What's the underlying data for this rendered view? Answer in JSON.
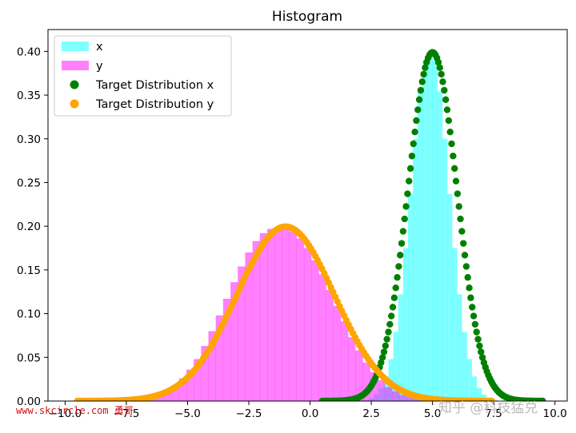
{
  "chart_data": {
    "type": "area",
    "title": "Histogram",
    "xlabel": "",
    "ylabel": "",
    "xlim": [
      -10.7,
      10.5
    ],
    "ylim": [
      0,
      0.425
    ],
    "x_ticks": [
      -10.0,
      -7.5,
      -5.0,
      -2.5,
      0.0,
      2.5,
      5.0,
      7.5,
      10.0
    ],
    "x_tick_labels": [
      "−10.0",
      "−7.5",
      "−5.0",
      "−2.5",
      "0.0",
      "2.5",
      "5.0",
      "7.5",
      "10.0"
    ],
    "y_ticks": [
      0.0,
      0.05,
      0.1,
      0.15,
      0.2,
      0.25,
      0.3,
      0.35,
      0.4
    ],
    "y_tick_labels": [
      "0.00",
      "0.05",
      "0.10",
      "0.15",
      "0.20",
      "0.25",
      "0.30",
      "0.35",
      "0.40"
    ],
    "grid": false,
    "legend_position": "top-left",
    "series": [
      {
        "name": "x",
        "kind": "histogram",
        "color": "#00ffff",
        "opacity": 0.5,
        "bin_width": 0.2,
        "bin_centers": [
          0.5,
          0.7,
          0.9,
          1.1,
          1.3,
          1.5,
          1.7,
          1.9,
          2.1,
          2.3,
          2.5,
          2.7,
          2.9,
          3.1,
          3.3,
          3.5,
          3.7,
          3.9,
          4.1,
          4.3,
          4.5,
          4.7,
          4.9,
          5.1,
          5.3,
          5.5,
          5.7,
          5.9,
          6.1,
          6.3,
          6.5,
          6.7,
          6.9,
          7.1,
          7.3,
          7.5,
          7.7,
          7.9,
          8.1,
          8.3,
          8.5,
          8.7,
          8.9,
          9.1,
          9.3,
          9.5
        ],
        "values": [
          0.0,
          0.0,
          0.0,
          0.0,
          0.0,
          0.0,
          0.0001,
          0.0002,
          0.0005,
          0.0014,
          0.0032,
          0.0074,
          0.015,
          0.028,
          0.048,
          0.079,
          0.122,
          0.175,
          0.237,
          0.3,
          0.354,
          0.39,
          0.4,
          0.39,
          0.354,
          0.3,
          0.237,
          0.175,
          0.122,
          0.079,
          0.048,
          0.028,
          0.015,
          0.0074,
          0.0032,
          0.0014,
          0.0005,
          0.0002,
          0.0001,
          0.0,
          0.0,
          0.0,
          0.0,
          0.0,
          0.0,
          0.0
        ]
      },
      {
        "name": "y",
        "kind": "histogram",
        "color": "#ff00ff",
        "opacity": 0.5,
        "bin_width": 0.3,
        "bin_centers": [
          -9.4,
          -9.1,
          -8.8,
          -8.5,
          -8.2,
          -7.9,
          -7.6,
          -7.3,
          -7.0,
          -6.7,
          -6.4,
          -6.1,
          -5.8,
          -5.5,
          -5.2,
          -4.9,
          -4.6,
          -4.3,
          -4.0,
          -3.7,
          -3.4,
          -3.1,
          -2.8,
          -2.5,
          -2.2,
          -1.9,
          -1.6,
          -1.3,
          -1.0,
          -0.7,
          -0.4,
          -0.1,
          0.2,
          0.5,
          0.8,
          1.1,
          1.4,
          1.7,
          2.0,
          2.3,
          2.6,
          2.9,
          3.2,
          3.5,
          3.8,
          4.1,
          4.4,
          4.7,
          5.0,
          5.3,
          5.6,
          5.9,
          6.2,
          6.5,
          6.8,
          7.1,
          7.4
        ],
        "values": [
          0.0,
          0.0,
          0.0,
          0.0001,
          0.0002,
          0.0003,
          0.0006,
          0.001,
          0.0018,
          0.003,
          0.0049,
          0.0077,
          0.012,
          0.018,
          0.026,
          0.036,
          0.048,
          0.063,
          0.08,
          0.098,
          0.117,
          0.136,
          0.154,
          0.17,
          0.183,
          0.192,
          0.197,
          0.198,
          0.196,
          0.194,
          0.186,
          0.175,
          0.161,
          0.145,
          0.127,
          0.109,
          0.091,
          0.073,
          0.058,
          0.044,
          0.033,
          0.024,
          0.016,
          0.011,
          0.0071,
          0.0045,
          0.0027,
          0.0016,
          0.0009,
          0.0005,
          0.0003,
          0.0001,
          0.0001,
          0.0,
          0.0,
          0.0,
          0.0
        ]
      },
      {
        "name": "Target Distribution x",
        "kind": "scatter",
        "color": "#008000",
        "x_start": 0.5,
        "x_end": 9.5,
        "step": 0.06,
        "mean": 5.0,
        "std": 1.0
      },
      {
        "name": "Target Distribution y",
        "kind": "scatter",
        "color": "#ffa500",
        "x_start": -9.5,
        "x_end": 7.5,
        "step": 0.09,
        "mean": -1.0,
        "std": 2.0
      }
    ]
  },
  "watermarks": {
    "left": "www.skcircle.com 勇哥",
    "right": "知乎 @科技猛兑"
  }
}
